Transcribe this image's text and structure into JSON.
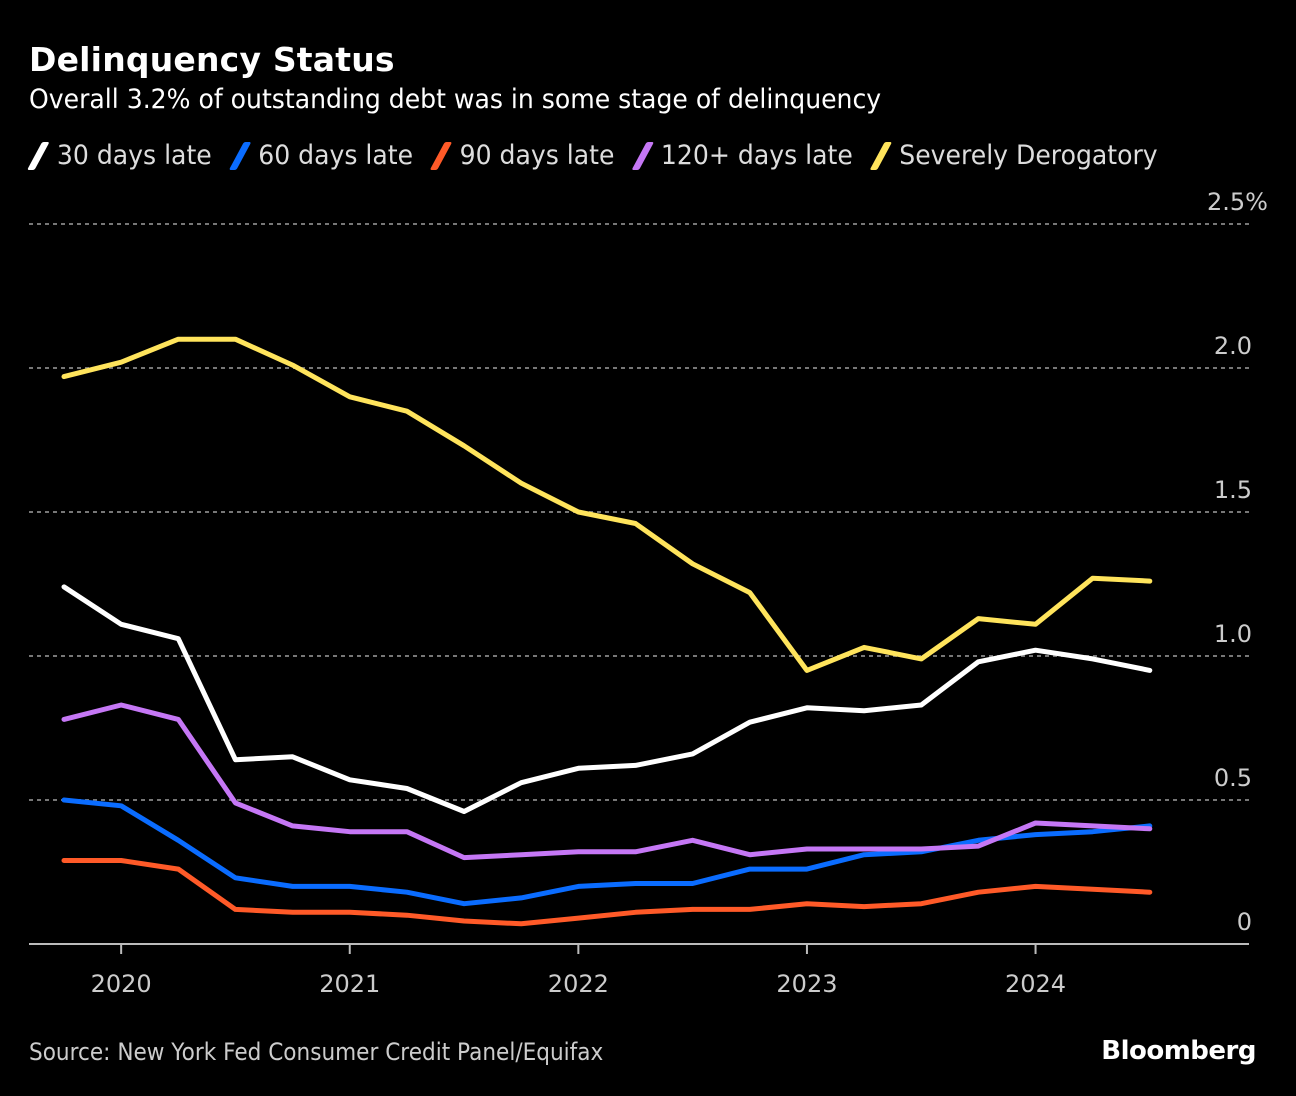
{
  "header": {
    "title": "Delinquency Status",
    "subtitle": "Overall 3.2% of outstanding debt was in some stage of delinquency"
  },
  "footer": {
    "source": "Source: New York Fed Consumer Credit Panel/Equifax",
    "brand": "Bloomberg"
  },
  "chart_data": {
    "type": "line",
    "title": "Delinquency Status",
    "subtitle": "Overall 3.2% of outstanding debt was in some stage of delinquency",
    "xlabel": "",
    "ylabel": "",
    "x": [
      "2019 Q4",
      "2020 Q1",
      "2020 Q2",
      "2020 Q3",
      "2020 Q4",
      "2021 Q1",
      "2021 Q2",
      "2021 Q3",
      "2021 Q4",
      "2022 Q1",
      "2022 Q2",
      "2022 Q3",
      "2022 Q4",
      "2023 Q1",
      "2023 Q2",
      "2023 Q3",
      "2023 Q4",
      "2024 Q1",
      "2024 Q2",
      "2024 Q3"
    ],
    "x_ticks": [
      "2020",
      "2021",
      "2022",
      "2023",
      "2024"
    ],
    "y_ticks": [
      "0",
      "0.5",
      "1.0",
      "1.5",
      "2.0",
      "2.5%"
    ],
    "y_tick_values": [
      0,
      0.5,
      1.0,
      1.5,
      2.0,
      2.5
    ],
    "ylim": [
      0,
      2.5
    ],
    "grid": true,
    "legend_position": "top",
    "series": [
      {
        "name": "30 days late",
        "color": "#ffffff",
        "values": [
          1.24,
          1.11,
          1.06,
          0.64,
          0.65,
          0.57,
          0.54,
          0.46,
          0.56,
          0.61,
          0.62,
          0.66,
          0.77,
          0.82,
          0.81,
          0.83,
          0.98,
          1.02,
          0.99,
          0.95
        ]
      },
      {
        "name": "60 days late",
        "color": "#0a6cff",
        "values": [
          0.5,
          0.48,
          0.36,
          0.23,
          0.2,
          0.2,
          0.18,
          0.14,
          0.16,
          0.2,
          0.21,
          0.21,
          0.26,
          0.26,
          0.31,
          0.32,
          0.36,
          0.38,
          0.39,
          0.41
        ]
      },
      {
        "name": "90 days late",
        "color": "#ff5a28",
        "values": [
          0.29,
          0.29,
          0.26,
          0.12,
          0.11,
          0.11,
          0.1,
          0.08,
          0.07,
          0.09,
          0.11,
          0.12,
          0.12,
          0.14,
          0.13,
          0.14,
          0.18,
          0.2,
          0.19,
          0.18
        ]
      },
      {
        "name": "120+ days late",
        "color": "#c577f5",
        "values": [
          0.78,
          0.83,
          0.78,
          0.49,
          0.41,
          0.39,
          0.39,
          0.3,
          0.31,
          0.32,
          0.32,
          0.36,
          0.31,
          0.33,
          0.33,
          0.33,
          0.34,
          0.42,
          0.41,
          0.4
        ]
      },
      {
        "name": "Severely Derogatory",
        "color": "#ffe45c",
        "values": [
          1.97,
          2.02,
          2.1,
          2.1,
          2.01,
          1.9,
          1.85,
          1.73,
          1.6,
          1.5,
          1.46,
          1.32,
          1.22,
          0.95,
          1.03,
          0.99,
          1.13,
          1.11,
          1.27,
          1.26
        ]
      }
    ]
  }
}
